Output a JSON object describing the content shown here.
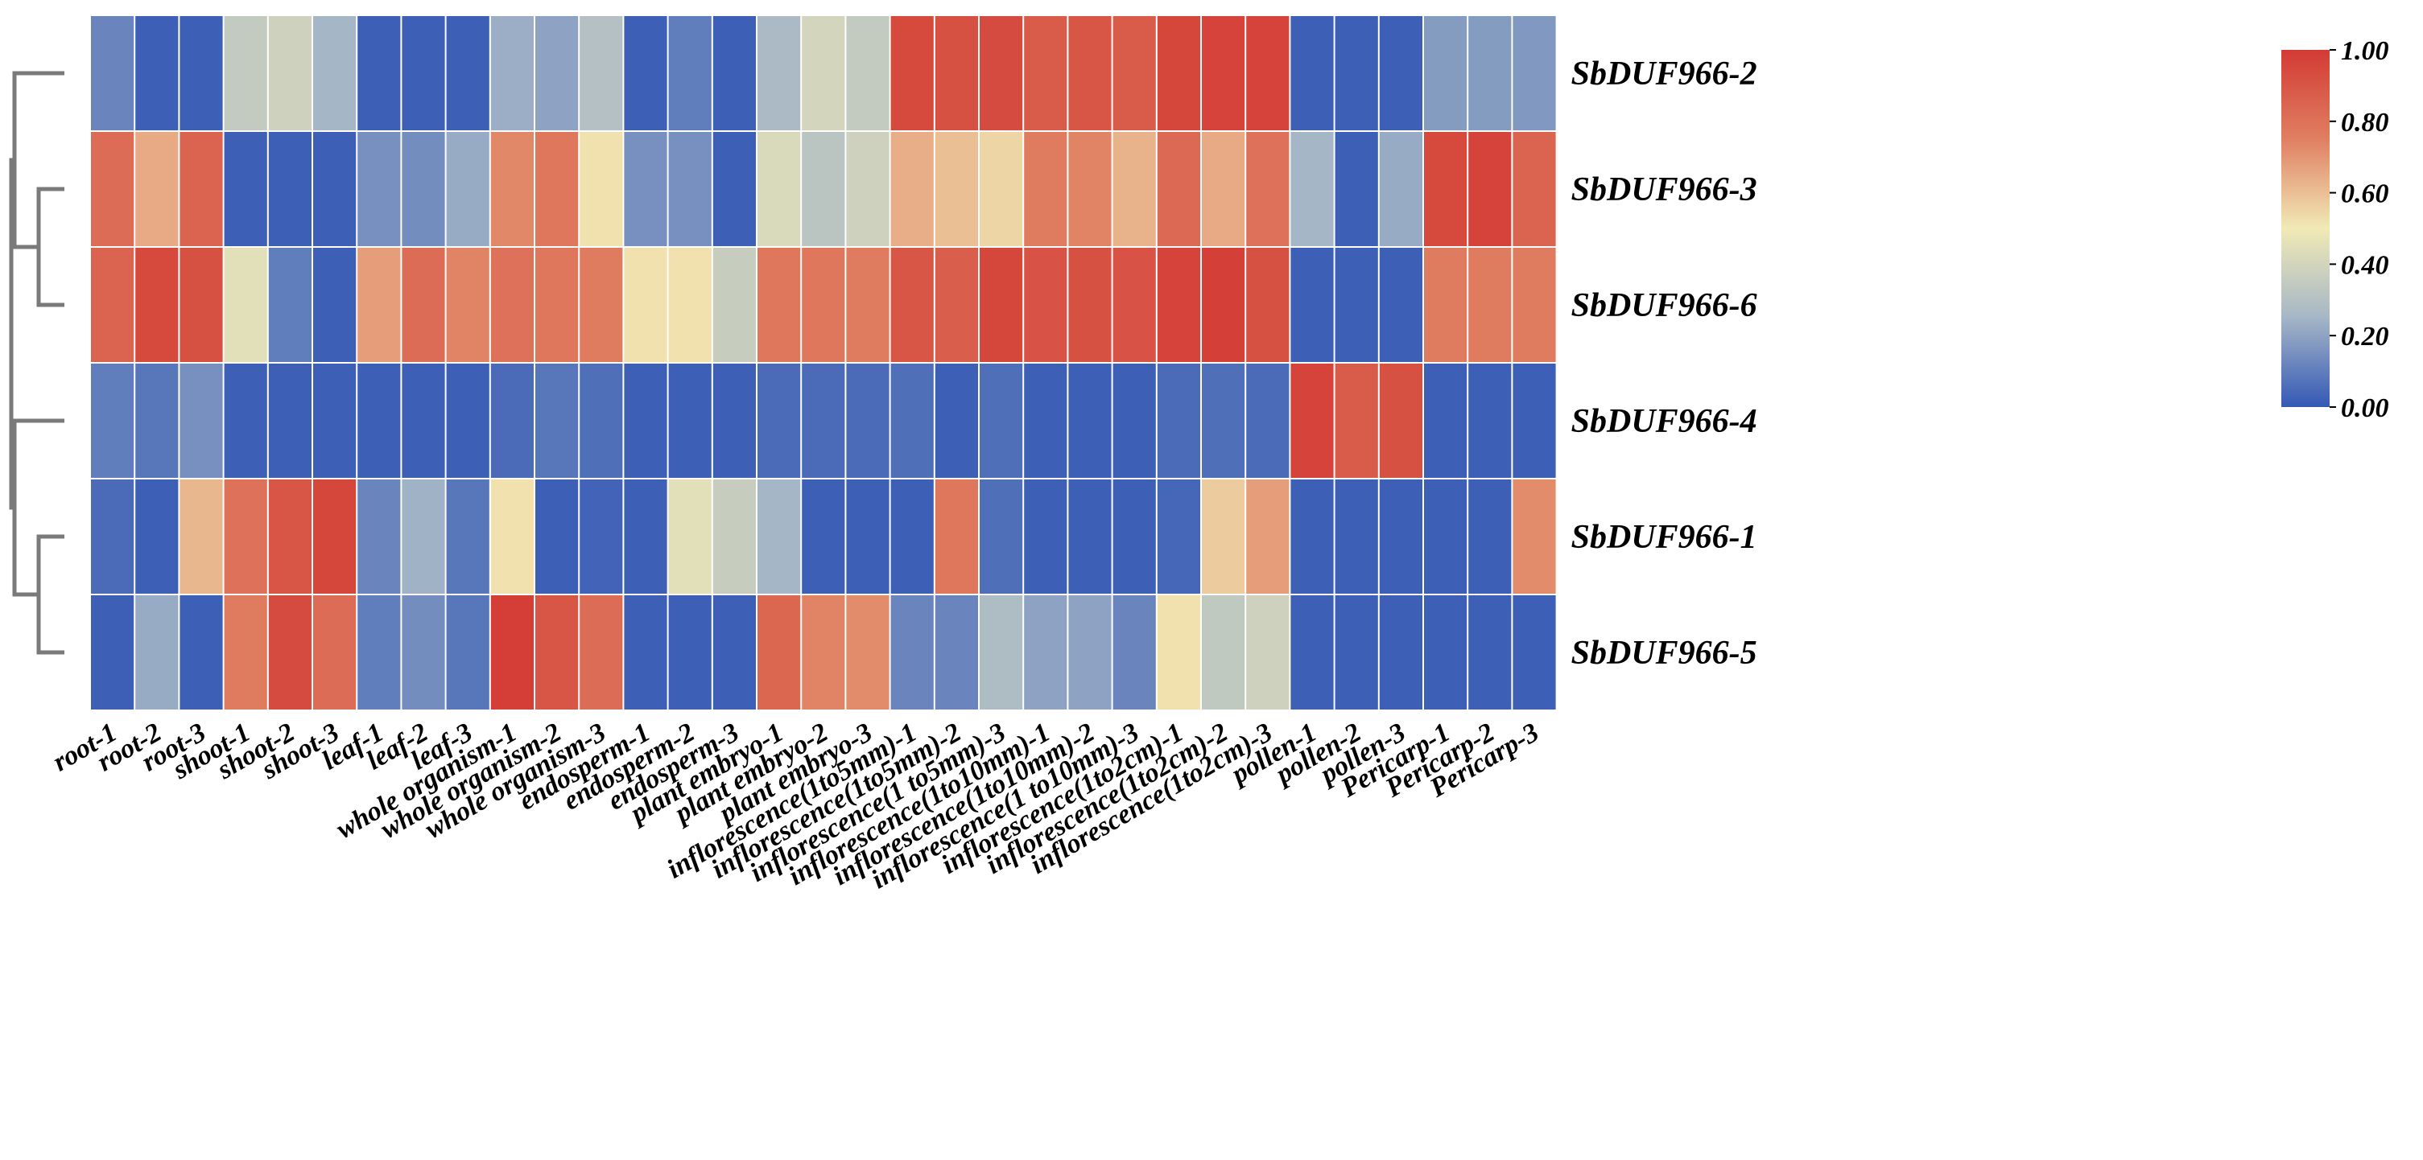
{
  "chart_data": {
    "type": "heatmap",
    "title": "",
    "rows": [
      "SbDUF966-2",
      "SbDUF966-3",
      "SbDUF966-6",
      "SbDUF966-4",
      "SbDUF966-1",
      "SbDUF966-5"
    ],
    "columns": [
      "root-1",
      "root-2",
      "root-3",
      "shoot-1",
      "shoot-2",
      "shoot-3",
      "leaf-1",
      "leaf-2",
      "leaf-3",
      "whole organism-1",
      "whole organism-2",
      "whole organism-3",
      "endosperm-1",
      "endosperm-2",
      "endosperm-3",
      "plant embryo-1",
      "plant embryo-2",
      "plant embryo-3",
      "inflorescence(1to5mm)-1",
      "inflorescence(1to5mm)-2",
      "inflorescence(1 to5mm)-3",
      "inflorescence(1to10mm)-1",
      "inflorescence(1to10mm)-2",
      "inflorescence(1 to10mm)-3",
      "inflorescence(1to2cm)-1",
      "inflorescence(1to2cm)-2",
      "inflorescence(1to2cm)-3",
      "pollen-1",
      "pollen-2",
      "pollen-3",
      "Pericarp-1",
      "Pericarp-2",
      "Pericarp-3"
    ],
    "values": [
      [
        0.12,
        0.02,
        0.02,
        0.35,
        0.38,
        0.25,
        0.02,
        0.02,
        0.02,
        0.23,
        0.2,
        0.3,
        0.02,
        0.1,
        0.02,
        0.27,
        0.4,
        0.35,
        0.95,
        0.92,
        0.94,
        0.88,
        0.9,
        0.88,
        0.96,
        0.97,
        0.97,
        0.02,
        0.02,
        0.02,
        0.18,
        0.18,
        0.17
      ],
      [
        0.82,
        0.65,
        0.85,
        0.02,
        0.02,
        0.02,
        0.15,
        0.14,
        0.22,
        0.73,
        0.78,
        0.52,
        0.15,
        0.15,
        0.02,
        0.42,
        0.32,
        0.38,
        0.64,
        0.6,
        0.55,
        0.76,
        0.74,
        0.63,
        0.83,
        0.65,
        0.8,
        0.25,
        0.02,
        0.22,
        0.95,
        0.97,
        0.85
      ],
      [
        0.85,
        0.95,
        0.92,
        0.45,
        0.1,
        0.02,
        0.68,
        0.82,
        0.74,
        0.8,
        0.78,
        0.76,
        0.52,
        0.52,
        0.36,
        0.78,
        0.78,
        0.76,
        0.9,
        0.87,
        0.96,
        0.91,
        0.92,
        0.91,
        0.97,
        0.98,
        0.92,
        0.02,
        0.02,
        0.02,
        0.76,
        0.76,
        0.76
      ],
      [
        0.1,
        0.08,
        0.15,
        0.02,
        0.02,
        0.02,
        0.02,
        0.02,
        0.02,
        0.05,
        0.08,
        0.06,
        0.02,
        0.02,
        0.02,
        0.05,
        0.05,
        0.05,
        0.06,
        0.02,
        0.06,
        0.02,
        0.02,
        0.02,
        0.05,
        0.06,
        0.05,
        0.97,
        0.88,
        0.92,
        0.02,
        0.02,
        0.02
      ],
      [
        0.05,
        0.02,
        0.62,
        0.8,
        0.9,
        0.96,
        0.12,
        0.24,
        0.08,
        0.52,
        0.02,
        0.03,
        0.02,
        0.45,
        0.36,
        0.25,
        0.02,
        0.02,
        0.02,
        0.78,
        0.06,
        0.02,
        0.02,
        0.02,
        0.04,
        0.57,
        0.68,
        0.02,
        0.02,
        0.02,
        0.02,
        0.02,
        0.72
      ],
      [
        0.02,
        0.22,
        0.02,
        0.76,
        0.94,
        0.82,
        0.1,
        0.14,
        0.08,
        0.99,
        0.9,
        0.82,
        0.02,
        0.02,
        0.02,
        0.84,
        0.74,
        0.72,
        0.12,
        0.12,
        0.28,
        0.2,
        0.2,
        0.12,
        0.52,
        0.34,
        0.38,
        0.02,
        0.02,
        0.02,
        0.02,
        0.02,
        0.02
      ]
    ],
    "value_range": [
      0,
      1
    ],
    "colorbar": {
      "ticks": [
        "0.00",
        "0.20",
        "0.40",
        "0.60",
        "0.80",
        "1.00"
      ],
      "colors": [
        "#3458b5",
        "#a5b6c6",
        "#f1eab6",
        "#e07f62",
        "#d33b34"
      ]
    },
    "dendrogram": {
      "leaf_order": [
        "SbDUF966-2",
        "SbDUF966-3",
        "SbDUF966-6",
        "SbDUF966-4",
        "SbDUF966-1",
        "SbDUF966-5"
      ],
      "merges": [
        {
          "a": "SbDUF966-3",
          "b": "SbDUF966-6",
          "height": 1
        },
        {
          "a": "SbDUF966-1",
          "b": "SbDUF966-5",
          "height": 1
        },
        {
          "a": "SbDUF966-2",
          "b": "cluster(SbDUF966-3,SbDUF966-6)",
          "height": 2
        },
        {
          "a": "SbDUF966-4",
          "b": "cluster(SbDUF966-1,SbDUF966-5)",
          "height": 2
        },
        {
          "a": "upper",
          "b": "lower",
          "height": 3
        }
      ],
      "line_color": "#7a7a7a"
    },
    "grid_line_color": "#ffffff"
  }
}
